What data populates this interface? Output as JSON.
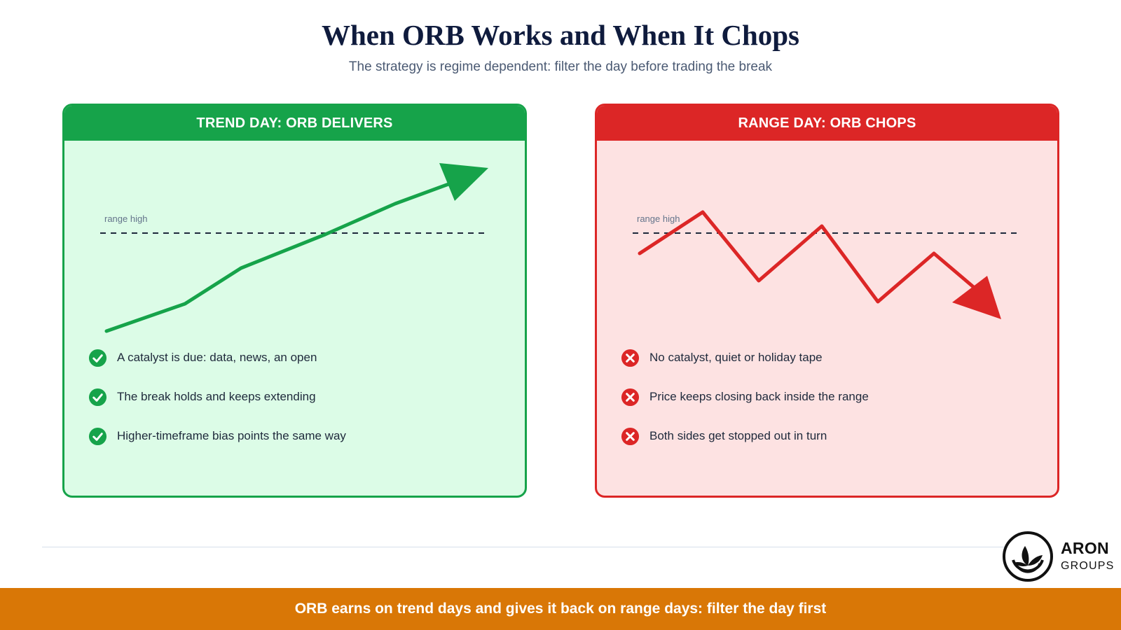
{
  "title": "When ORB Works and When It Chops",
  "subtitle": "The strategy is regime dependent: filter the day before trading the break",
  "panels": [
    {
      "header": "TREND DAY: ORB DELIVERS",
      "level_label": "range high",
      "accent": "#16a34a",
      "background": "#dcfce7",
      "bullet_icon": "check-circle-icon",
      "bullets": [
        "A catalyst is due: data, news, an open",
        "The break holds and keeps extending",
        "Higher-timeframe bias points the same way"
      ]
    },
    {
      "header": "RANGE DAY: ORB CHOPS",
      "level_label": "range high",
      "accent": "#dc2626",
      "background": "#fde2e2",
      "bullet_icon": "x-circle-icon",
      "bullets": [
        "No catalyst, quiet or holiday tape",
        "Price keeps closing back inside the range",
        "Both sides get stopped out in turn"
      ]
    }
  ],
  "brand": {
    "name": "ARON",
    "sub": "GROUPS"
  },
  "footer": "ORB earns on trend days and gives it back on range days: filter the day first",
  "colors": {
    "footer": "#d97706",
    "title": "#0f1b3d"
  }
}
